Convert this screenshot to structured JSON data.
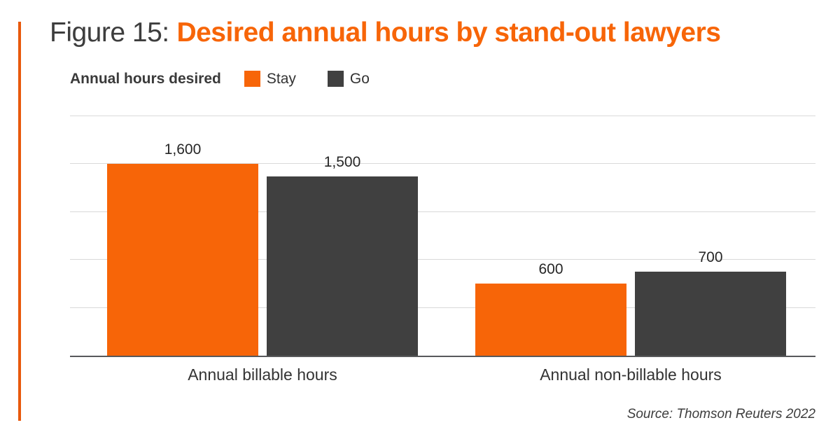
{
  "figure": {
    "label": "Figure 15:",
    "title": "Desired annual hours by stand-out lawyers"
  },
  "legend": {
    "title": "Annual hours desired",
    "items": [
      {
        "label": "Stay",
        "color": "#f76508"
      },
      {
        "label": "Go",
        "color": "#404040"
      }
    ]
  },
  "chart_data": {
    "type": "bar",
    "title": "Figure 15: Desired annual hours by stand-out lawyers",
    "categories": [
      "Annual billable hours",
      "Annual non-billable hours"
    ],
    "series": [
      {
        "name": "Stay",
        "color": "#f76508",
        "values": [
          1600,
          600
        ],
        "labels": [
          "1,600",
          "600"
        ]
      },
      {
        "name": "Go",
        "color": "#404040",
        "values": [
          1500,
          700
        ],
        "labels": [
          "1,500",
          "700"
        ]
      }
    ],
    "xlabel": "",
    "ylabel": "",
    "ylim": [
      0,
      2000
    ],
    "gridline_step": 400,
    "grid": true,
    "legend_position": "top",
    "value_labels_shown": true,
    "y_axis_ticks_shown": false
  },
  "source": "Source: Thomson Reuters 2022",
  "colors": {
    "accent_line": "#e8590c",
    "title_orange": "#f76508",
    "title_gray": "#3d3d3d",
    "gridline": "#d9d9d9",
    "axis_baseline": "#58595b",
    "background": "#ffffff"
  }
}
